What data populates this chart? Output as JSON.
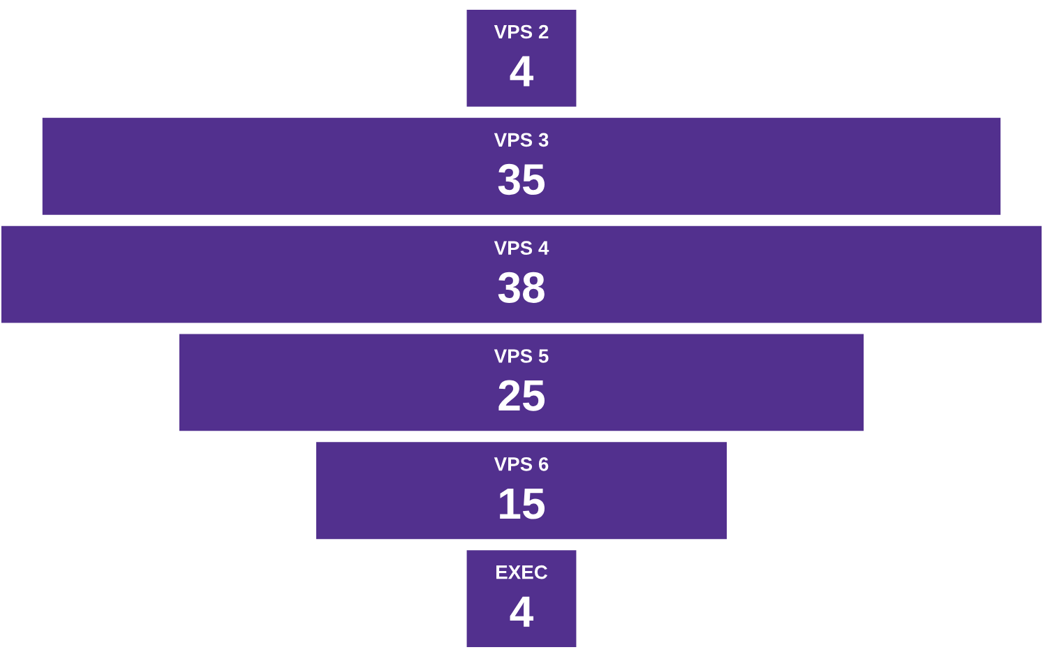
{
  "chart_data": {
    "type": "other",
    "categories": [
      "VPS 2",
      "VPS 3",
      "VPS 4",
      "VPS 5",
      "VPS 6",
      "EXEC"
    ],
    "values": [
      4,
      35,
      38,
      25,
      15,
      4
    ],
    "color": "#52308e",
    "data_labels": true
  }
}
